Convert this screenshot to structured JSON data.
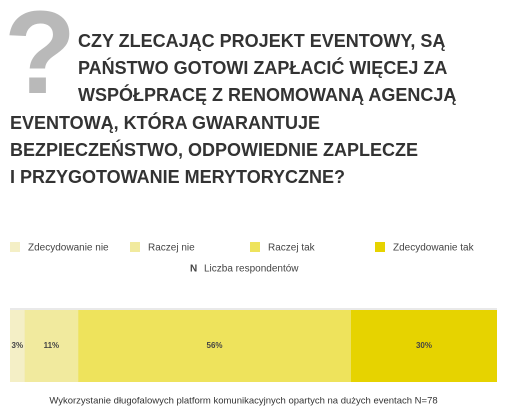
{
  "chart_data": {
    "type": "stacked-bar-100",
    "title": [
      "CZY ZLECAJĄC PROJEKT EVENTOWY, SĄ",
      "PAŃSTWO GOTOWI ZAPŁACIĆ WIĘCEJ ZA",
      "WSPÓŁPRACĘ Z RENOMOWANĄ AGENCJĄ",
      "EVENTOWĄ, KTÓRA GWARANTUJE",
      "BEZPIECZEŃSTWO, ODPOWIEDNIE ZAPLECZE",
      "I PRZYGOTOWANIE MERYTORYCZNE?"
    ],
    "categories": [
      "Wykorzystanie długofalowych platform komunikacyjnych opartych na dużych eventach  N=78"
    ],
    "series": [
      {
        "name": "Zdecydowanie nie",
        "color": "#f4efc6",
        "values": [
          3
        ],
        "value_labels": [
          "3%"
        ]
      },
      {
        "name": "Raczej nie",
        "color": "#f1ea9e",
        "values": [
          11
        ],
        "value_labels": [
          "11%"
        ]
      },
      {
        "name": "Raczej tak",
        "color": "#eee35c",
        "values": [
          56
        ],
        "value_labels": [
          "56%"
        ]
      },
      {
        "name": "Zdecydowanie tak",
        "color": "#e6d300",
        "values": [
          30
        ],
        "value_labels": [
          "30%"
        ]
      }
    ],
    "n_symbol": "N",
    "n_label": "Liczba respondentów",
    "xlim": [
      0,
      100
    ]
  }
}
